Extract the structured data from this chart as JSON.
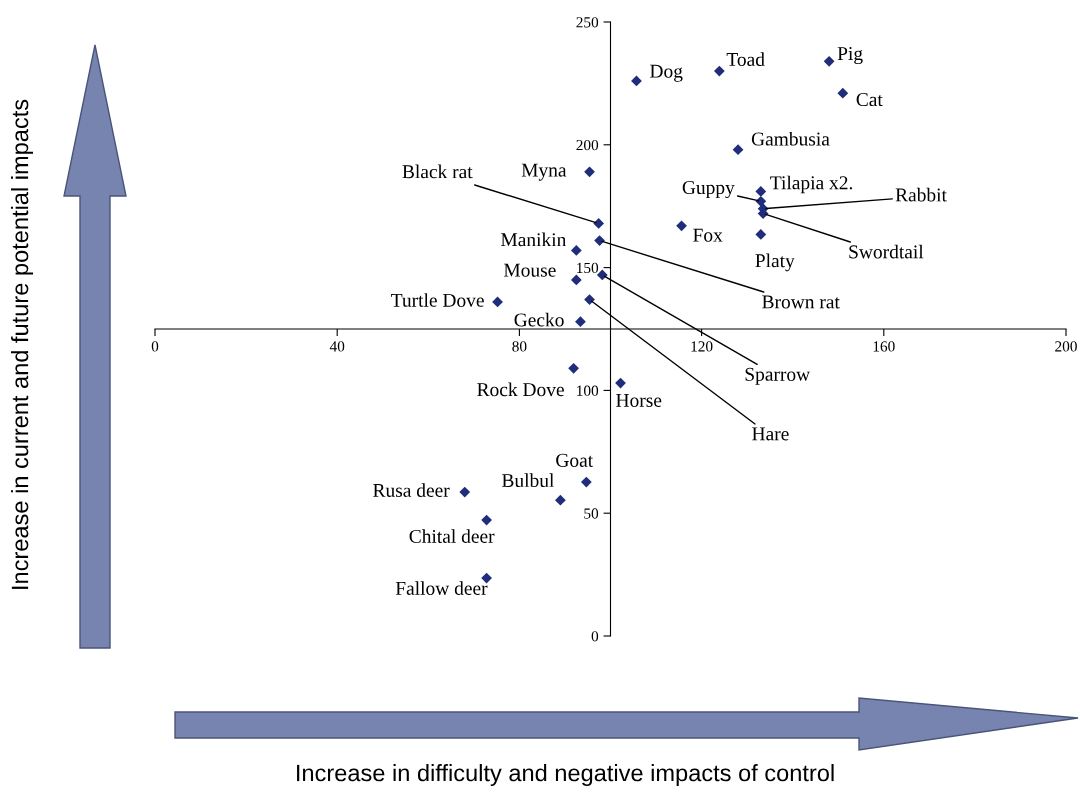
{
  "chart_data": {
    "type": "scatter",
    "xlim": [
      0,
      200
    ],
    "ylim": [
      0,
      250
    ],
    "xticks": [
      0,
      40,
      80,
      120,
      160,
      200
    ],
    "yticks": [
      0,
      50,
      100,
      150,
      200,
      250
    ],
    "grid": false,
    "legend": false,
    "marker": "diamond",
    "series": [
      {
        "color": "#1f2d7a",
        "x": [
          105.7,
          123.9,
          148,
          151,
          128,
          95.4,
          97.4,
          133,
          133,
          133.5,
          133.5,
          115.6,
          133,
          92.5,
          97.6,
          92.5,
          98.2,
          95.4,
          75.2,
          93.4,
          91.9,
          102.2,
          94.7,
          89,
          68,
          72.8,
          72.8
        ],
        "values": [
          226,
          230,
          234,
          221,
          198,
          189,
          168,
          181,
          177,
          174,
          172,
          167,
          163.5,
          157,
          161,
          145,
          147,
          137,
          136,
          128,
          109,
          103,
          62.7,
          55.3,
          58.6,
          47.2,
          23.6
        ]
      }
    ],
    "annotations": [
      {
        "text": "Dog",
        "x": 105.7,
        "y": 226
      },
      {
        "text": "Toad",
        "x": 123.9,
        "y": 230
      },
      {
        "text": "Pig",
        "x": 148,
        "y": 234
      },
      {
        "text": "Cat",
        "x": 151,
        "y": 221
      },
      {
        "text": "Gambusia",
        "x": 128,
        "y": 198
      },
      {
        "text": "Myna",
        "x": 95.4,
        "y": 189
      },
      {
        "text": "Black rat",
        "x": 97.4,
        "y": 168
      },
      {
        "text": "Tilapia x2.",
        "x": 133,
        "y": 181
      },
      {
        "text": "Guppy",
        "x": 133,
        "y": 177
      },
      {
        "text": "Rabbit",
        "x": 133.5,
        "y": 174
      },
      {
        "text": "Swordtail",
        "x": 133.5,
        "y": 172
      },
      {
        "text": "Fox",
        "x": 115.6,
        "y": 167
      },
      {
        "text": "Platy",
        "x": 133,
        "y": 163.5
      },
      {
        "text": "Manikin",
        "x": 92.5,
        "y": 157
      },
      {
        "text": "Brown rat",
        "x": 97.6,
        "y": 161
      },
      {
        "text": "Mouse",
        "x": 92.5,
        "y": 145
      },
      {
        "text": "Sparrow",
        "x": 98.2,
        "y": 147
      },
      {
        "text": "Hare",
        "x": 95.4,
        "y": 137
      },
      {
        "text": "Turtle Dove",
        "x": 75.2,
        "y": 136
      },
      {
        "text": "Gecko",
        "x": 93.4,
        "y": 128
      },
      {
        "text": "Rock Dove",
        "x": 91.9,
        "y": 109
      },
      {
        "text": "Horse",
        "x": 102.2,
        "y": 103
      },
      {
        "text": "Goat",
        "x": 94.7,
        "y": 62.7
      },
      {
        "text": "Bulbul",
        "x": 89,
        "y": 55.3
      },
      {
        "text": "Rusa deer",
        "x": 68,
        "y": 58.6
      },
      {
        "text": "Chital deer",
        "x": 72.8,
        "y": 47.2
      },
      {
        "text": "Fallow deer",
        "x": 72.8,
        "y": 23.6
      },
      "Increase in current and future potential impacts",
      "Increase in difficulty and negative impacts of control"
    ]
  }
}
